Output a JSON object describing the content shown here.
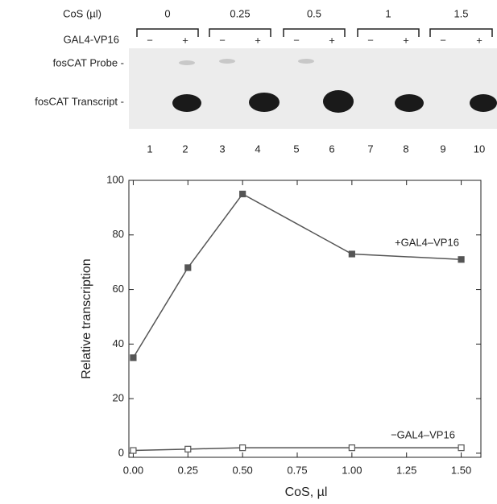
{
  "gel": {
    "cos_label": "CoS (µl)",
    "amounts": [
      "0",
      "0.25",
      "0.5",
      "1",
      "1.5"
    ],
    "activator_label": "GAL4-VP16",
    "signs": [
      "−",
      "+",
      "−",
      "+",
      "−",
      "+",
      "−",
      "+",
      "−",
      "+"
    ],
    "probe_label": "fosCAT Probe -",
    "transcript_label": "fosCAT Transcript -",
    "lanes": [
      "1",
      "2",
      "3",
      "4",
      "5",
      "6",
      "7",
      "8",
      "9",
      "10"
    ]
  },
  "chart_data": {
    "type": "line",
    "x_label": "CoS, µl",
    "y_label": "Relative transcription",
    "x": [
      0,
      0.25,
      0.5,
      1.0,
      1.5
    ],
    "series": [
      {
        "name": "+GAL4–VP16",
        "color": "#555555",
        "marker": "filled-square",
        "values": [
          35,
          68,
          95,
          73,
          71
        ]
      },
      {
        "name": "−GAL4–VP16",
        "color": "#555555",
        "marker": "open-square",
        "values": [
          1,
          1.5,
          2,
          2,
          2
        ]
      }
    ],
    "xlim": [
      -0.02,
      1.59
    ],
    "ylim": [
      -1.5,
      100
    ],
    "xticks": [
      {
        "value": 0,
        "label": "0.00"
      },
      {
        "value": 0.25,
        "label": "0.25"
      },
      {
        "value": 0.5,
        "label": "0.50"
      },
      {
        "value": 0.75,
        "label": "0.75"
      },
      {
        "value": 1.0,
        "label": "1.00"
      },
      {
        "value": 1.25,
        "label": "1.25"
      },
      {
        "value": 1.5,
        "label": "1.50"
      }
    ],
    "yticks": [
      0,
      20,
      40,
      60,
      80,
      100
    ]
  }
}
